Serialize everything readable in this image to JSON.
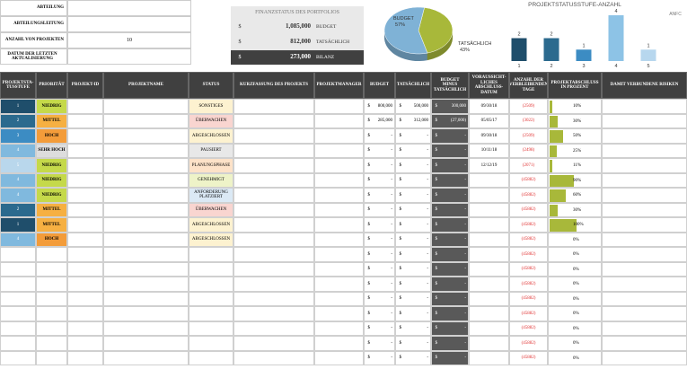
{
  "info": {
    "rows": [
      {
        "label": "ABTEILUNG"
      },
      {
        "label": "ABTEILUNGSLEITUNG"
      },
      {
        "label": "ANZAHL VON PROJEKTEN",
        "value": "10"
      },
      {
        "label": "DATUM DER LETZTEN AKTUALISIERUNG"
      }
    ]
  },
  "finance": {
    "title": "FINANZSTATUS DES PORTFOLIOS",
    "currency": "$",
    "rows": [
      {
        "amount": "1,085,000",
        "label": "BUDGET"
      },
      {
        "amount": "812,000",
        "label": "TATSÄCHLICH"
      },
      {
        "amount": "273,000",
        "label": "BILANZ"
      }
    ]
  },
  "chart_data": [
    {
      "type": "pie",
      "categories": [
        "BUDGET",
        "TATSÄCHLICH"
      ],
      "values": [
        57,
        43
      ],
      "value_labels": [
        "57%",
        "43%"
      ],
      "colors": [
        "#7fb2d6",
        "#a8b83a"
      ]
    },
    {
      "type": "bar",
      "title": "PROJEKTSTATUSSTUFE-ANZAHL",
      "legend_label": "ANFC",
      "categories": [
        "1",
        "2",
        "3",
        "4",
        "5"
      ],
      "values": [
        2,
        2,
        1,
        4,
        1
      ],
      "colors": [
        "#1f4e6b",
        "#2b6a8e",
        "#3c8cc3",
        "#8dc3e6",
        "#b7d7ee"
      ],
      "ylim": [
        0,
        4
      ]
    }
  ],
  "table": {
    "headers": [
      "PROJEKTSTA-TUSSTUFE",
      "PRIORITÄT",
      "PROJEKT-ID",
      "PROJEKTNAME",
      "STATUS",
      "KURZFASSUNG DES PROJEKTS",
      "PROJEKTMANAGER",
      "BUDGET",
      "TATSÄCHLICH",
      "BUDGET MINUS TATSÄCHLICH",
      "VORAUSSICHT-LICHES ABSCHLUSS-DATUM",
      "ANZAHL DER VERBLEIBENDEN TAGE",
      "PROJEKTABSCHLUSS IN PROZENT",
      "DAMIT VERBUNDENE RISIKEN"
    ],
    "currency": "$",
    "stage_colors": [
      "#1f4e6b",
      "#2b6a8e",
      "#3c8cc3",
      "#80b9de",
      "#b9d7ec"
    ],
    "priority_colors": {
      "NIEDRIG": "#c5d94a",
      "MITTEL": "#f6b042",
      "HOCH": "#f39c3a",
      "SEHR HOCH": "#dddddd"
    },
    "status_colors": {
      "SONSTIGES": "#fdf2d0",
      "ÜBERWACHEN": "#f9d5d0",
      "ABGESCHLOSSEN": "#fdf2d0",
      "PAUSIERT": "#e8e8e8",
      "PLANUNGSPHASE": "#fde2c8",
      "GENEHMIGT": "#eef3c8",
      "ANFORDERUNG PLATZIERT": "#dbe9f5"
    },
    "progress_color": "#a8b83a",
    "rows": [
      {
        "stage": 1,
        "priority": "NIEDRIG",
        "status": "SONSTIGES",
        "budget": "800,000",
        "actual": "500,000",
        "diff": "300,000",
        "date": "09/30/18",
        "days": "(2509)",
        "pct": 10,
        "pct_label": "10%"
      },
      {
        "stage": 2,
        "priority": "MITTEL",
        "status": "ÜBERWACHEN",
        "budget": "285,000",
        "actual": "312,000",
        "diff": "(27,000)",
        "date": "05/05/17",
        "days": "(3022)",
        "pct": 30,
        "pct_label": "30%"
      },
      {
        "stage": 3,
        "priority": "HOCH",
        "status": "ABGESCHLOSSEN",
        "budget": "-",
        "actual": "-",
        "diff": "-",
        "date": "09/30/18",
        "days": "(2509)",
        "pct": 50,
        "pct_label": "50%"
      },
      {
        "stage": 4,
        "priority": "SEHR HOCH",
        "status": "PAUSIERT",
        "budget": "-",
        "actual": "-",
        "diff": "-",
        "date": "10/11/18",
        "days": "(2498)",
        "pct": 25,
        "pct_label": "25%"
      },
      {
        "stage": 5,
        "priority": "NIEDRIG",
        "status": "PLANUNGSPHASE",
        "budget": "-",
        "actual": "-",
        "diff": "-",
        "date": "12/12/19",
        "days": "(2071)",
        "pct": 11,
        "pct_label": "11%"
      },
      {
        "stage": 4,
        "priority": "NIEDRIG",
        "status": "GENEHMIGT",
        "budget": "-",
        "actual": "-",
        "diff": "-",
        "days": "(45882)",
        "pct": 90,
        "pct_label": "90%"
      },
      {
        "stage": 4,
        "priority": "NIEDRIG",
        "status": "ANFORDERUNG PLATZIERT",
        "budget": "-",
        "actual": "-",
        "diff": "-",
        "days": "(45882)",
        "pct": 60,
        "pct_label": "60%"
      },
      {
        "stage": 2,
        "priority": "MITTEL",
        "status": "ÜBERWACHEN",
        "budget": "-",
        "actual": "-",
        "diff": "-",
        "days": "(45882)",
        "pct": 30,
        "pct_label": "30%"
      },
      {
        "stage": 1,
        "priority": "MITTEL",
        "status": "ABGESCHLOSSEN",
        "budget": "-",
        "actual": "-",
        "diff": "-",
        "days": "(45882)",
        "pct": 100,
        "pct_label": "100%"
      },
      {
        "stage": 4,
        "priority": "HOCH",
        "status": "ABGESCHLOSSEN",
        "budget": "-",
        "actual": "-",
        "diff": "-",
        "days": "(45882)",
        "pct": 0,
        "pct_label": "0%"
      },
      {
        "budget": "-",
        "actual": "-",
        "diff": "-",
        "days": "(45882)",
        "pct": 0,
        "pct_label": "0%"
      },
      {
        "budget": "-",
        "actual": "-",
        "diff": "-",
        "days": "(45882)",
        "pct": 0,
        "pct_label": "0%"
      },
      {
        "budget": "-",
        "actual": "-",
        "diff": "-",
        "days": "(45882)",
        "pct": 0,
        "pct_label": "0%"
      },
      {
        "budget": "-",
        "actual": "-",
        "diff": "-",
        "days": "(45882)",
        "pct": 0,
        "pct_label": "0%"
      },
      {
        "budget": "-",
        "actual": "-",
        "diff": "-",
        "days": "(45882)",
        "pct": 0,
        "pct_label": "0%"
      },
      {
        "budget": "-",
        "actual": "-",
        "diff": "-",
        "days": "(45882)",
        "pct": 0,
        "pct_label": "0%"
      },
      {
        "budget": "-",
        "actual": "-",
        "diff": "-",
        "days": "(45882)",
        "pct": 0,
        "pct_label": "0%"
      },
      {
        "budget": "-",
        "actual": "-",
        "diff": "-",
        "days": "(45882)",
        "pct": 0,
        "pct_label": "0%"
      }
    ]
  }
}
